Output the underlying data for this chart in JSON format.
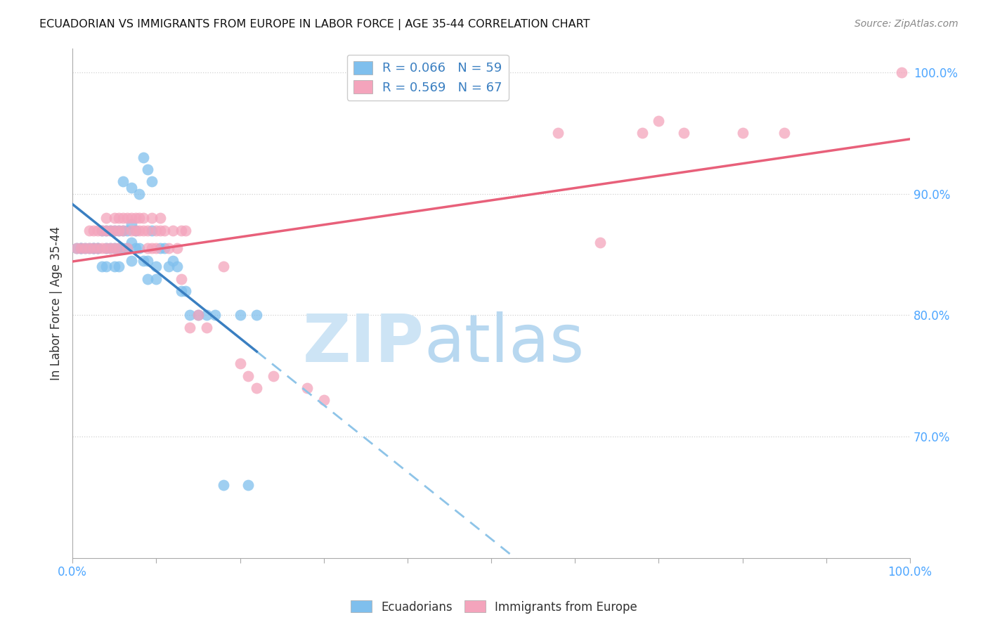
{
  "title": "ECUADORIAN VS IMMIGRANTS FROM EUROPE IN LABOR FORCE | AGE 35-44 CORRELATION CHART",
  "source": "Source: ZipAtlas.com",
  "ylabel": "In Labor Force | Age 35-44",
  "legend_label1": "Ecuadorians",
  "legend_label2": "Immigrants from Europe",
  "R1": 0.066,
  "N1": 59,
  "R2": 0.569,
  "N2": 67,
  "color1": "#7fbfed",
  "color2": "#f4a4bc",
  "line_color1": "#3a7fc1",
  "line_color1_dash": "#8ec4e8",
  "line_color2": "#e8607a",
  "xlim": [
    0.0,
    1.0
  ],
  "ylim": [
    0.6,
    1.02
  ],
  "y_ticks": [
    0.7,
    0.8,
    0.9,
    1.0
  ],
  "ecuadorians_x": [
    0.005,
    0.01,
    0.01,
    0.015,
    0.02,
    0.025,
    0.025,
    0.03,
    0.03,
    0.035,
    0.035,
    0.04,
    0.04,
    0.04,
    0.045,
    0.045,
    0.05,
    0.05,
    0.05,
    0.055,
    0.055,
    0.055,
    0.06,
    0.06,
    0.06,
    0.065,
    0.065,
    0.07,
    0.07,
    0.07,
    0.07,
    0.075,
    0.075,
    0.08,
    0.08,
    0.085,
    0.09,
    0.09,
    0.095,
    0.1,
    0.1,
    0.105,
    0.11,
    0.115,
    0.12,
    0.125,
    0.13,
    0.135,
    0.14,
    0.15,
    0.16,
    0.17,
    0.18,
    0.2,
    0.21,
    0.22,
    0.085,
    0.09,
    0.095
  ],
  "ecuadorians_y": [
    0.855,
    0.855,
    0.855,
    0.855,
    0.855,
    0.855,
    0.855,
    0.855,
    0.855,
    0.87,
    0.84,
    0.87,
    0.855,
    0.84,
    0.87,
    0.855,
    0.87,
    0.855,
    0.84,
    0.87,
    0.855,
    0.84,
    0.91,
    0.87,
    0.855,
    0.87,
    0.855,
    0.905,
    0.875,
    0.86,
    0.845,
    0.87,
    0.855,
    0.9,
    0.855,
    0.845,
    0.845,
    0.83,
    0.87,
    0.84,
    0.83,
    0.855,
    0.855,
    0.84,
    0.845,
    0.84,
    0.82,
    0.82,
    0.8,
    0.8,
    0.8,
    0.8,
    0.66,
    0.8,
    0.66,
    0.8,
    0.93,
    0.92,
    0.91
  ],
  "europe_x": [
    0.005,
    0.01,
    0.015,
    0.02,
    0.025,
    0.025,
    0.03,
    0.03,
    0.035,
    0.035,
    0.04,
    0.04,
    0.04,
    0.045,
    0.045,
    0.05,
    0.05,
    0.05,
    0.055,
    0.055,
    0.055,
    0.06,
    0.06,
    0.065,
    0.065,
    0.07,
    0.07,
    0.075,
    0.075,
    0.08,
    0.08,
    0.085,
    0.085,
    0.09,
    0.09,
    0.095,
    0.095,
    0.1,
    0.1,
    0.105,
    0.105,
    0.11,
    0.115,
    0.12,
    0.125,
    0.13,
    0.13,
    0.135,
    0.14,
    0.15,
    0.16,
    0.18,
    0.2,
    0.21,
    0.22,
    0.24,
    0.02,
    0.28,
    0.3,
    0.58,
    0.63,
    0.68,
    0.7,
    0.73,
    0.8,
    0.85,
    0.99
  ],
  "europe_y": [
    0.855,
    0.855,
    0.855,
    0.87,
    0.87,
    0.855,
    0.87,
    0.855,
    0.87,
    0.855,
    0.88,
    0.87,
    0.855,
    0.87,
    0.855,
    0.88,
    0.87,
    0.855,
    0.88,
    0.87,
    0.855,
    0.88,
    0.87,
    0.88,
    0.855,
    0.88,
    0.87,
    0.88,
    0.87,
    0.88,
    0.87,
    0.88,
    0.87,
    0.855,
    0.87,
    0.855,
    0.88,
    0.87,
    0.855,
    0.88,
    0.87,
    0.87,
    0.855,
    0.87,
    0.855,
    0.87,
    0.83,
    0.87,
    0.79,
    0.8,
    0.79,
    0.84,
    0.76,
    0.75,
    0.74,
    0.75,
    0.855,
    0.74,
    0.73,
    0.95,
    0.86,
    0.95,
    0.96,
    0.95,
    0.95,
    0.95,
    1.0
  ],
  "watermark_zip": "ZIP",
  "watermark_atlas": "atlas",
  "watermark_color": "#cde4f5",
  "background_color": "#ffffff",
  "grid_color": "#cccccc",
  "tick_color": "#4da6ff"
}
